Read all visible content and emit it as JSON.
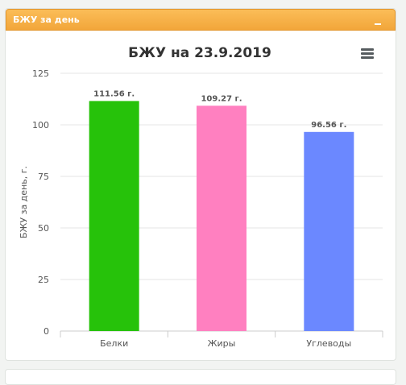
{
  "panel": {
    "title": "БЖУ за день",
    "collapse_icon": "minus-icon",
    "menu_icon": "hamburger-menu-icon"
  },
  "colors": {
    "header": "#f8b14a",
    "grid": "#e6e6e6",
    "axis_text": "#555555",
    "label_text": "#555555"
  },
  "chart_data": {
    "type": "bar",
    "title": "БЖУ на 23.9.2019",
    "xlabel": "",
    "ylabel": "БЖУ за день, г.",
    "ylim": [
      0,
      125
    ],
    "yticks": [
      0,
      25,
      50,
      75,
      100,
      125
    ],
    "grid": true,
    "categories": [
      "Белки",
      "Жиры",
      "Углеводы"
    ],
    "values": [
      111.56,
      109.27,
      96.56
    ],
    "data_labels": [
      "111.56 г.",
      "109.27 г.",
      "96.56 г."
    ],
    "colors": [
      "#26c20a",
      "#ff80c0",
      "#6b88ff"
    ]
  }
}
